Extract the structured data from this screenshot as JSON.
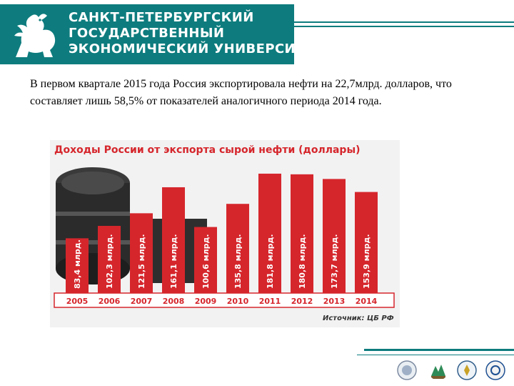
{
  "header": {
    "university_lines": [
      "САНКТ-ПЕТЕРБУРГСКИЙ",
      "ГОСУДАРСТВЕННЫЙ",
      "ЭКОНОМИЧЕСКИЙ УНИВЕРСИТЕТ"
    ],
    "band_color": "#0e7c7e"
  },
  "intro": {
    "text": "В первом квартале 2015 года Россия экспортировала нефти на 22,7млрд. долларов, что составляет лишь 58,5% от показателей аналогичного периода 2014 года."
  },
  "chart_data": {
    "type": "bar",
    "title": "Доходы России от экспорта сырой нефти (доллары)",
    "categories": [
      "2005",
      "2006",
      "2007",
      "2008",
      "2009",
      "2010",
      "2011",
      "2012",
      "2013",
      "2014"
    ],
    "values": [
      83.4,
      102.3,
      121.5,
      161.1,
      100.6,
      135.8,
      181.8,
      180.8,
      173.7,
      153.9
    ],
    "value_labels": [
      "83,4 млрд.",
      "102,3 млрд.",
      "121,5 млрд.",
      "161,1 млрд.",
      "100,6 млрд.",
      "135,8 млрд.",
      "181,8 млрд.",
      "180,8 млрд.",
      "173,7 млрд.",
      "153,9 млрд."
    ],
    "source": "Источник: ЦБ РФ",
    "bar_color": "#d5262c"
  },
  "footer": {
    "line_color": "#0e7c7e"
  }
}
